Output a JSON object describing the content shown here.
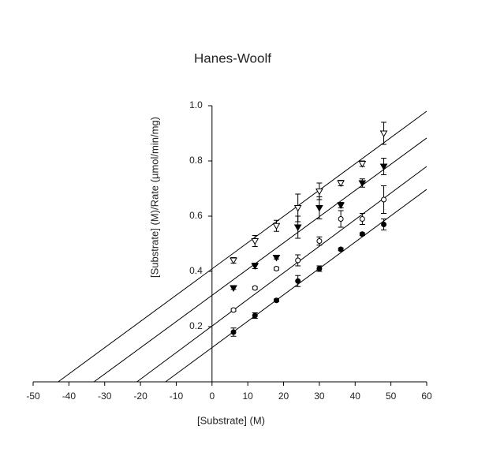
{
  "chart_data": {
    "type": "scatter",
    "title": "Hanes-Woolf",
    "x_label": "[Substrate] (M)",
    "y_label": "[Substrate] (M)/Rate (µmol/min/mg)",
    "xlim": [
      -50,
      60
    ],
    "xticks": [
      -50,
      -40,
      -30,
      -20,
      -10,
      0,
      10,
      20,
      30,
      40,
      50,
      60
    ],
    "ylim": [
      0,
      1
    ],
    "yticks": [
      0.2,
      0.4,
      0.6,
      0.8,
      {
        "value": 1,
        "label": "1.0"
      }
    ],
    "color": "#000000",
    "series": [
      {
        "marker": "triangle-down-open",
        "x": [
          6,
          12,
          18,
          24,
          30,
          36,
          42,
          48
        ],
        "values": [
          0.44,
          0.51,
          0.565,
          0.63,
          0.69,
          0.72,
          0.79,
          0.9
        ],
        "errors": [
          0.01,
          0.02,
          0.02,
          0.05,
          0.03,
          0.01,
          0.01,
          0.04
        ],
        "fit": {
          "x": [
            -43,
            60
          ],
          "y": [
            0,
            0.98
          ]
        }
      },
      {
        "marker": "triangle-down-filled",
        "x": [
          6,
          12,
          18,
          24,
          30,
          36,
          42,
          48
        ],
        "values": [
          0.34,
          0.42,
          0.45,
          0.56,
          0.63,
          0.64,
          0.72,
          0.78
        ],
        "errors": [
          0.005,
          0.01,
          0.005,
          0.04,
          0.04,
          0.01,
          0.015,
          0.03
        ],
        "fit": {
          "x": [
            -33,
            60
          ],
          "y": [
            0,
            0.883
          ]
        }
      },
      {
        "marker": "circle-open",
        "x": [
          6,
          12,
          18,
          24,
          30,
          36,
          42,
          48
        ],
        "values": [
          0.26,
          0.34,
          0.41,
          0.44,
          0.51,
          0.59,
          0.59,
          0.66
        ],
        "errors": [
          0.005,
          0.005,
          0.005,
          0.02,
          0.015,
          0.03,
          0.02,
          0.05
        ],
        "fit": {
          "x": [
            -21,
            60
          ],
          "y": [
            0,
            0.78
          ]
        }
      },
      {
        "marker": "circle-filled",
        "x": [
          6,
          12,
          18,
          24,
          30,
          36,
          42,
          48
        ],
        "values": [
          0.18,
          0.24,
          0.295,
          0.365,
          0.41,
          0.48,
          0.535,
          0.57
        ],
        "errors": [
          0.015,
          0.01,
          0.005,
          0.02,
          0.01,
          0.005,
          0.005,
          0.02
        ],
        "fit": {
          "x": [
            -13,
            60
          ],
          "y": [
            0,
            0.697
          ]
        }
      }
    ]
  }
}
